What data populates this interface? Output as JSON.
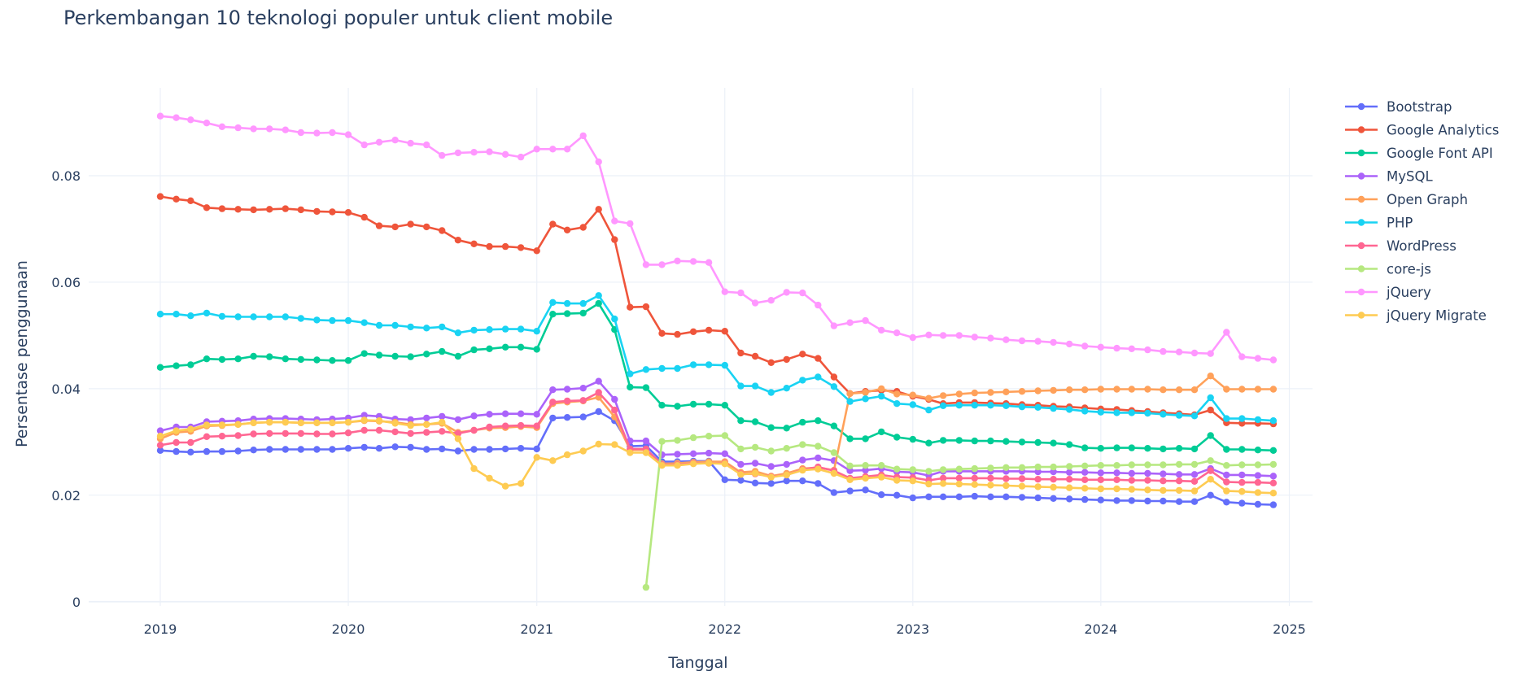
{
  "chart_data": {
    "type": "line",
    "title": "Perkembangan 10 teknologi populer untuk client mobile",
    "xlabel": "Tanggal",
    "ylabel": "Persentase penggunaan",
    "xlim": [
      "2018-08-15",
      "2025-02-15"
    ],
    "ylim": [
      -0.0008,
      0.0965
    ],
    "x_ticks": [
      "2019-01-01",
      "2020-01-01",
      "2021-01-01",
      "2022-01-01",
      "2023-01-01",
      "2024-01-01",
      "2025-01-01"
    ],
    "x_tick_labels": [
      "2019",
      "2020",
      "2021",
      "2022",
      "2023",
      "2024",
      "2025"
    ],
    "y_ticks": [
      0,
      0.02,
      0.04,
      0.06,
      0.08
    ],
    "y_tick_labels": [
      "0",
      "0.02",
      "0.04",
      "0.06",
      "0.08"
    ],
    "grid": true,
    "legend_position": "right",
    "x_start": "2019-01",
    "x_count": 72,
    "series": [
      {
        "name": "Bootstrap",
        "color": "#636efa",
        "values": [
          0.0284,
          0.0282,
          0.0281,
          0.0282,
          0.0282,
          0.0283,
          0.0285,
          0.0286,
          0.0286,
          0.0286,
          0.0286,
          0.0286,
          0.0288,
          0.029,
          0.0288,
          0.0291,
          0.029,
          0.0286,
          0.0287,
          0.0283,
          0.0286,
          0.0286,
          0.0287,
          0.0288,
          0.0287,
          0.0345,
          0.0346,
          0.0347,
          0.0357,
          0.034,
          0.0292,
          0.0293,
          0.0263,
          0.0263,
          0.0264,
          0.0264,
          0.0229,
          0.0228,
          0.0223,
          0.0222,
          0.0227,
          0.0227,
          0.0222,
          0.0205,
          0.0208,
          0.021,
          0.0201,
          0.02,
          0.0195,
          0.0197,
          0.0197,
          0.0197,
          0.0198,
          0.0197,
          0.0197,
          0.0196,
          0.0195,
          0.0194,
          0.0193,
          0.0192,
          0.0191,
          0.019,
          0.019,
          0.0189,
          0.0189,
          0.0188,
          0.0188,
          0.02,
          0.0187,
          0.0185,
          0.0183,
          0.0182
        ]
      },
      {
        "name": "Google Analytics",
        "color": "#ef553b",
        "values": [
          0.0761,
          0.0756,
          0.0753,
          0.074,
          0.0738,
          0.0737,
          0.0736,
          0.0737,
          0.0738,
          0.0736,
          0.0733,
          0.0732,
          0.0731,
          0.0722,
          0.0706,
          0.0704,
          0.0709,
          0.0704,
          0.0697,
          0.0679,
          0.0672,
          0.0667,
          0.0667,
          0.0665,
          0.0659,
          0.0709,
          0.0698,
          0.0703,
          0.0737,
          0.068,
          0.0553,
          0.0554,
          0.0504,
          0.0502,
          0.0507,
          0.051,
          0.0508,
          0.0467,
          0.0461,
          0.0449,
          0.0455,
          0.0465,
          0.0457,
          0.0422,
          0.0391,
          0.0395,
          0.0397,
          0.0395,
          0.0386,
          0.038,
          0.0372,
          0.0374,
          0.0374,
          0.0373,
          0.0372,
          0.037,
          0.0369,
          0.0367,
          0.0366,
          0.0364,
          0.0362,
          0.0361,
          0.0359,
          0.0357,
          0.0355,
          0.0353,
          0.0351,
          0.036,
          0.0336,
          0.0335,
          0.0335,
          0.0334
        ]
      },
      {
        "name": "Google Font API",
        "color": "#00cc96",
        "values": [
          0.044,
          0.0443,
          0.0445,
          0.0456,
          0.0455,
          0.0456,
          0.0461,
          0.046,
          0.0456,
          0.0455,
          0.0454,
          0.0453,
          0.0453,
          0.0466,
          0.0463,
          0.0461,
          0.046,
          0.0465,
          0.047,
          0.0461,
          0.0473,
          0.0475,
          0.0478,
          0.0478,
          0.0474,
          0.054,
          0.0541,
          0.0542,
          0.056,
          0.0511,
          0.0403,
          0.0402,
          0.0369,
          0.0367,
          0.0371,
          0.0371,
          0.0369,
          0.034,
          0.0338,
          0.0327,
          0.0326,
          0.0337,
          0.034,
          0.033,
          0.0306,
          0.0306,
          0.0319,
          0.0309,
          0.0305,
          0.0298,
          0.0303,
          0.0303,
          0.0302,
          0.0302,
          0.0301,
          0.03,
          0.0299,
          0.0298,
          0.0295,
          0.0289,
          0.0288,
          0.0289,
          0.0289,
          0.0288,
          0.0287,
          0.0288,
          0.0287,
          0.0312,
          0.0286,
          0.0286,
          0.0285,
          0.0284
        ]
      },
      {
        "name": "MySQL",
        "color": "#ab63fa",
        "values": [
          0.0321,
          0.0328,
          0.0328,
          0.0338,
          0.0339,
          0.034,
          0.0343,
          0.0344,
          0.0344,
          0.0343,
          0.0342,
          0.0343,
          0.0345,
          0.035,
          0.0348,
          0.0343,
          0.0342,
          0.0345,
          0.0348,
          0.0342,
          0.0349,
          0.0352,
          0.0353,
          0.0353,
          0.0352,
          0.0398,
          0.0399,
          0.0401,
          0.0414,
          0.038,
          0.0302,
          0.0302,
          0.0276,
          0.0277,
          0.0278,
          0.0279,
          0.0278,
          0.0258,
          0.026,
          0.0254,
          0.0258,
          0.0266,
          0.027,
          0.0265,
          0.0246,
          0.0247,
          0.025,
          0.0244,
          0.0243,
          0.0237,
          0.0245,
          0.0245,
          0.0245,
          0.0245,
          0.0245,
          0.0245,
          0.0244,
          0.0244,
          0.0243,
          0.0243,
          0.0242,
          0.0242,
          0.0241,
          0.0241,
          0.024,
          0.0239,
          0.0239,
          0.025,
          0.0238,
          0.0238,
          0.0237,
          0.0236
        ]
      },
      {
        "name": "Open Graph",
        "color": "#ffa15a",
        "values": [
          0.0306,
          0.0318,
          0.032,
          0.033,
          0.0331,
          0.0333,
          0.0336,
          0.0337,
          0.0337,
          0.0336,
          0.0336,
          0.0336,
          0.0337,
          0.034,
          0.0339,
          0.0337,
          0.0333,
          0.0333,
          0.0335,
          0.0318,
          0.0322,
          0.0326,
          0.0327,
          0.0329,
          0.0327,
          0.0372,
          0.0375,
          0.0377,
          0.0384,
          0.0347,
          0.0285,
          0.0285,
          0.0259,
          0.026,
          0.0262,
          0.0263,
          0.0263,
          0.0243,
          0.0245,
          0.0236,
          0.0241,
          0.025,
          0.0252,
          0.0247,
          0.0391,
          0.0393,
          0.04,
          0.039,
          0.0388,
          0.0382,
          0.0387,
          0.039,
          0.0392,
          0.0393,
          0.0394,
          0.0395,
          0.0396,
          0.0397,
          0.0398,
          0.0398,
          0.0399,
          0.0399,
          0.0399,
          0.0399,
          0.0398,
          0.0398,
          0.0398,
          0.0424,
          0.0399,
          0.0399,
          0.0399,
          0.0399
        ]
      },
      {
        "name": "PHP",
        "color": "#19d3f3",
        "values": [
          0.054,
          0.054,
          0.0537,
          0.0542,
          0.0536,
          0.0535,
          0.0535,
          0.0535,
          0.0535,
          0.0532,
          0.0529,
          0.0528,
          0.0528,
          0.0524,
          0.0519,
          0.0519,
          0.0516,
          0.0514,
          0.0516,
          0.0505,
          0.051,
          0.0511,
          0.0512,
          0.0512,
          0.0508,
          0.0562,
          0.056,
          0.056,
          0.0575,
          0.0531,
          0.0428,
          0.0436,
          0.0438,
          0.0438,
          0.0445,
          0.0445,
          0.0444,
          0.0405,
          0.0405,
          0.0393,
          0.0401,
          0.0416,
          0.0422,
          0.0404,
          0.0376,
          0.0381,
          0.0386,
          0.0372,
          0.037,
          0.036,
          0.0368,
          0.0369,
          0.0369,
          0.0369,
          0.0368,
          0.0366,
          0.0365,
          0.0363,
          0.0361,
          0.0358,
          0.0356,
          0.0355,
          0.0355,
          0.0354,
          0.0352,
          0.035,
          0.0349,
          0.0383,
          0.0344,
          0.0344,
          0.0342,
          0.034
        ]
      },
      {
        "name": "WordPress",
        "color": "#ff6692",
        "values": [
          0.0294,
          0.0299,
          0.0299,
          0.031,
          0.0311,
          0.0312,
          0.0315,
          0.0316,
          0.0316,
          0.0316,
          0.0315,
          0.0315,
          0.0317,
          0.0322,
          0.0322,
          0.0319,
          0.0316,
          0.0318,
          0.032,
          0.0316,
          0.0322,
          0.0328,
          0.033,
          0.0331,
          0.033,
          0.0375,
          0.0377,
          0.0378,
          0.0393,
          0.036,
          0.0287,
          0.0287,
          0.0257,
          0.0257,
          0.026,
          0.026,
          0.026,
          0.024,
          0.024,
          0.0235,
          0.0238,
          0.0248,
          0.0253,
          0.0246,
          0.0232,
          0.0235,
          0.0238,
          0.0234,
          0.0233,
          0.0228,
          0.0232,
          0.0232,
          0.0232,
          0.0232,
          0.0231,
          0.0231,
          0.023,
          0.023,
          0.023,
          0.0229,
          0.0229,
          0.0229,
          0.0228,
          0.0228,
          0.0227,
          0.0227,
          0.0226,
          0.0246,
          0.0225,
          0.0224,
          0.0224,
          0.0223
        ]
      },
      {
        "name": "core-js",
        "color": "#b6e880",
        "values": [
          null,
          null,
          null,
          null,
          null,
          null,
          null,
          null,
          null,
          null,
          null,
          null,
          null,
          null,
          null,
          null,
          null,
          null,
          null,
          null,
          null,
          null,
          null,
          null,
          null,
          null,
          null,
          null,
          null,
          null,
          null,
          0.0027,
          0.0301,
          0.0303,
          0.0308,
          0.0311,
          0.0312,
          0.0287,
          0.029,
          0.0283,
          0.0288,
          0.0295,
          0.0292,
          0.028,
          0.0255,
          0.0256,
          0.0256,
          0.0249,
          0.0248,
          0.0245,
          0.0248,
          0.0249,
          0.025,
          0.0251,
          0.0252,
          0.0252,
          0.0253,
          0.0253,
          0.0254,
          0.0255,
          0.0256,
          0.0256,
          0.0257,
          0.0257,
          0.0257,
          0.0258,
          0.0258,
          0.0265,
          0.0256,
          0.0257,
          0.0257,
          0.0258
        ]
      },
      {
        "name": "jQuery",
        "color": "#ff97ff",
        "values": [
          0.0912,
          0.0909,
          0.0905,
          0.0899,
          0.0892,
          0.089,
          0.0888,
          0.0888,
          0.0886,
          0.0881,
          0.088,
          0.0881,
          0.0877,
          0.0858,
          0.0863,
          0.0867,
          0.0861,
          0.0858,
          0.0838,
          0.0843,
          0.0844,
          0.0845,
          0.084,
          0.0835,
          0.085,
          0.085,
          0.085,
          0.0875,
          0.0826,
          0.0715,
          0.071,
          0.0633,
          0.0633,
          0.064,
          0.0639,
          0.0637,
          0.0582,
          0.058,
          0.0561,
          0.0566,
          0.0581,
          0.058,
          0.0557,
          0.0518,
          0.0524,
          0.0528,
          0.051,
          0.0505,
          0.0496,
          0.0501,
          0.05,
          0.05,
          0.0497,
          0.0495,
          0.0492,
          0.049,
          0.0489,
          0.0487,
          0.0484,
          0.048,
          0.0478,
          0.0476,
          0.0475,
          0.0473,
          0.047,
          0.0469,
          0.0467,
          0.0466,
          0.0506,
          0.046,
          0.0457,
          0.0454
        ]
      },
      {
        "name": "jQuery Migrate",
        "color": "#fecb52",
        "values": [
          0.0311,
          0.0321,
          0.0324,
          0.0332,
          0.0332,
          0.0333,
          0.0336,
          0.0337,
          0.0337,
          0.0336,
          0.0336,
          0.0336,
          0.0337,
          0.0341,
          0.034,
          0.0335,
          0.0331,
          0.0333,
          0.0337,
          0.0306,
          0.025,
          0.0232,
          0.0217,
          0.0222,
          0.0271,
          0.0265,
          0.0276,
          0.0283,
          0.0296,
          0.0295,
          0.028,
          0.028,
          0.0256,
          0.0256,
          0.0259,
          0.026,
          0.0259,
          0.0239,
          0.0241,
          0.0234,
          0.0238,
          0.0247,
          0.0249,
          0.0241,
          0.0229,
          0.0232,
          0.0234,
          0.0228,
          0.0227,
          0.0221,
          0.0222,
          0.0221,
          0.022,
          0.0219,
          0.0218,
          0.0217,
          0.0216,
          0.0215,
          0.0214,
          0.0213,
          0.0212,
          0.0212,
          0.0211,
          0.021,
          0.0209,
          0.0209,
          0.0208,
          0.023,
          0.0208,
          0.0207,
          0.0205,
          0.0204
        ]
      }
    ]
  }
}
